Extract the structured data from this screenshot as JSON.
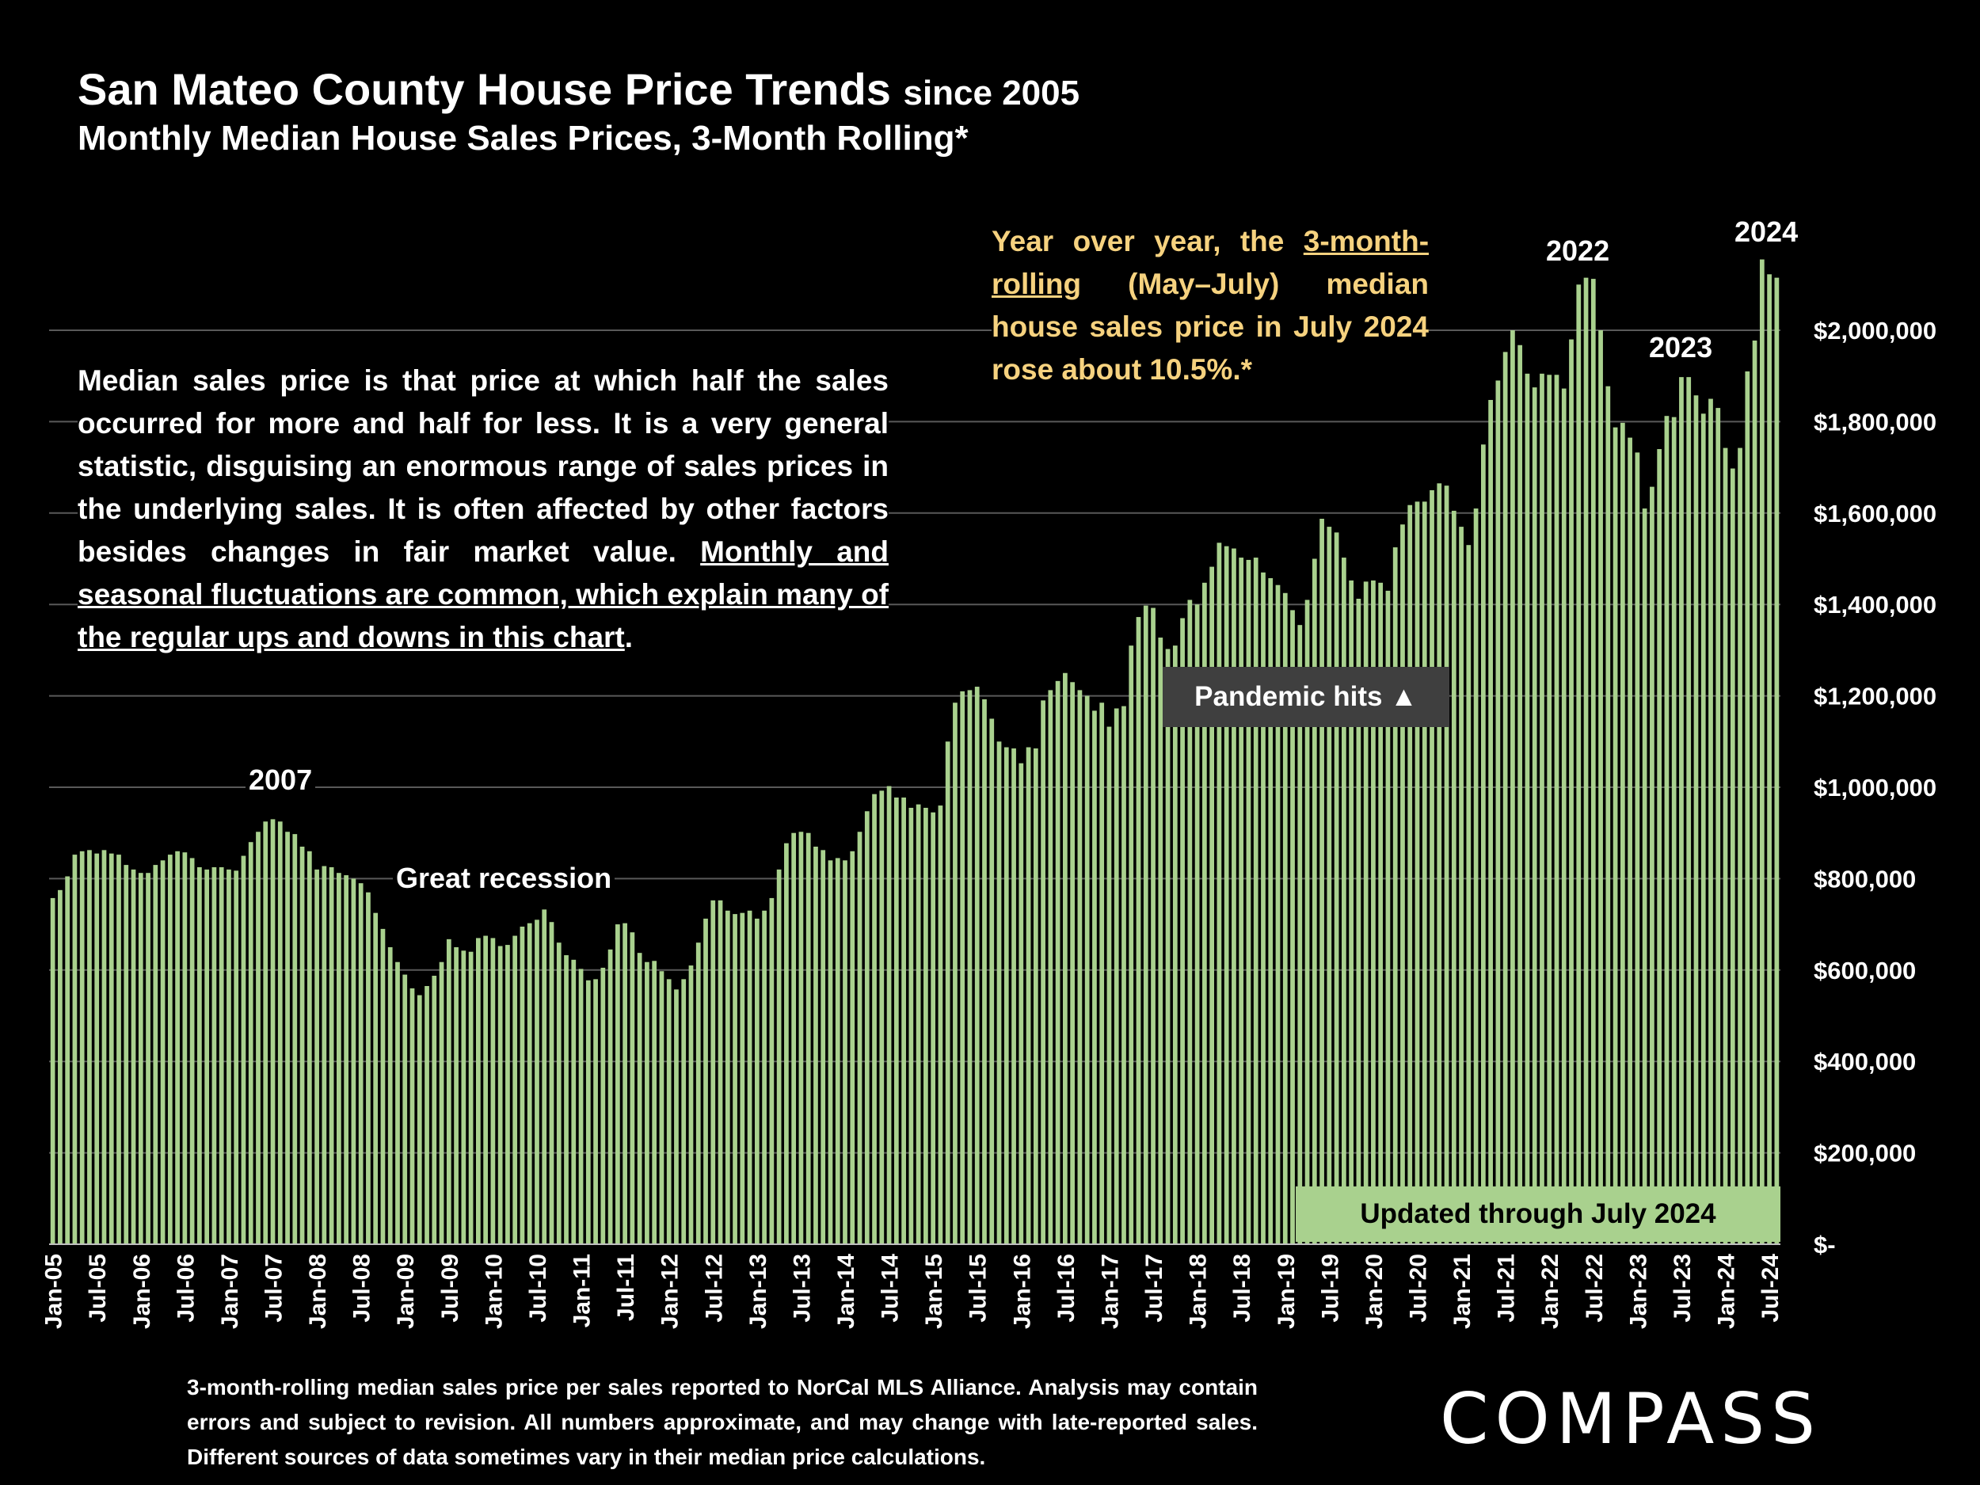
{
  "header": {
    "title": "San Mateo County House Price Trends",
    "title_suffix": "since 2005",
    "subtitle": "Monthly Median House Sales Prices, 3-Month Rolling*"
  },
  "notes": {
    "median_text": "Median sales price is that price at which half the sales occurred for more and half for less. It is a very general statistic, disguising an enormous range of sales prices in the underlying sales. It is often affected by other factors besides changes in fair market value.",
    "median_underlined": "Monthly and seasonal fluctuations are common, which explain many of the regular ups and downs in this chart",
    "median_end": ".",
    "yoy_pre": "Year over year, the",
    "yoy_link": "3-month-rolling",
    "yoy_post": "(May–July) median house sales price in July 2024 rose about 10.5%.*"
  },
  "annotations": {
    "y2007": "2007",
    "recession": "Great recession",
    "pandemic": "Pandemic hits ▲",
    "y2022": "2022",
    "y2023": "2023",
    "y2024": "2024",
    "updated": "Updated through July 2024"
  },
  "footnote": "3-month-rolling median sales price per sales reported to NorCal MLS Alliance. Analysis may contain errors and subject to revision. All numbers approximate, and may change with late-reported sales. Different sources of data sometimes vary in their median price calculations.",
  "logo": "COMPASS",
  "colors": {
    "bar": "#a9d18e",
    "background": "#000000",
    "highlight_text": "#f6d27f",
    "gridline": "#595959"
  },
  "chart_data": {
    "type": "bar",
    "title": "San Mateo County House Price Trends since 2005",
    "subtitle": "Monthly Median House Sales Prices, 3-Month Rolling*",
    "x_start": "Jan-05",
    "x_end": "Jul-24",
    "x_tick_labels": [
      "Jan-05",
      "Jul-05",
      "Jan-06",
      "Jul-06",
      "Jan-07",
      "Jul-07",
      "Jan-08",
      "Jul-08",
      "Jan-09",
      "Jul-09",
      "Jan-10",
      "Jul-10",
      "Jan-11",
      "Jul-11",
      "Jan-12",
      "Jul-12",
      "Jan-13",
      "Jul-13",
      "Jan-14",
      "Jul-14",
      "Jan-15",
      "Jul-15",
      "Jan-16",
      "Jul-16",
      "Jan-17",
      "Jul-17",
      "Jan-18",
      "Jul-18",
      "Jan-19",
      "Jul-19",
      "Jan-20",
      "Jul-20",
      "Jan-21",
      "Jul-21",
      "Jan-22",
      "Jul-22",
      "Jan-23",
      "Jul-23",
      "Jan-24",
      "Jul-24"
    ],
    "y_tick_labels": [
      "$-",
      "$200,000",
      "$400,000",
      "$600,000",
      "$800,000",
      "$1,000,000",
      "$1,200,000",
      "$1,400,000",
      "$1,600,000",
      "$1,800,000",
      "$2,000,000"
    ],
    "ylim": [
      0,
      2150000
    ],
    "y_axis_position": "right",
    "grid": true,
    "values": [
      757500,
      775000,
      805000,
      852500,
      860000,
      862500,
      855000,
      862500,
      855000,
      852500,
      830000,
      820000,
      812500,
      812500,
      830000,
      840000,
      852500,
      860000,
      857500,
      845000,
      825000,
      820000,
      825000,
      825000,
      820000,
      817500,
      850000,
      880000,
      902500,
      925000,
      930000,
      925000,
      902500,
      897500,
      870000,
      860000,
      820000,
      827500,
      825000,
      812500,
      807500,
      800000,
      790000,
      770000,
      725000,
      690000,
      650000,
      617500,
      590000,
      560000,
      545000,
      565000,
      587500,
      617500,
      667500,
      650000,
      642500,
      640000,
      670000,
      675000,
      670000,
      652500,
      655000,
      675000,
      695000,
      702500,
      710000,
      732500,
      705000,
      660000,
      632500,
      622500,
      602500,
      577500,
      580000,
      605000,
      645000,
      700000,
      702500,
      682500,
      637500,
      617500,
      620000,
      597500,
      580000,
      557500,
      580000,
      610000,
      660000,
      712500,
      752500,
      752500,
      730000,
      722500,
      725000,
      730000,
      712500,
      730000,
      757500,
      820000,
      877500,
      900000,
      902500,
      900000,
      870000,
      862500,
      840000,
      845000,
      840000,
      860000,
      902500,
      947500,
      985000,
      992500,
      1002500,
      977500,
      977500,
      955000,
      962500,
      955000,
      945000,
      960000,
      1100000,
      1185000,
      1210000,
      1212500,
      1220000,
      1192500,
      1150000,
      1100000,
      1087500,
      1085000,
      1052500,
      1087500,
      1085000,
      1190000,
      1212500,
      1232500,
      1250000,
      1230000,
      1212500,
      1200000,
      1167500,
      1185000,
      1132500,
      1172500,
      1177500,
      1310000,
      1372500,
      1397500,
      1392500,
      1327500,
      1302500,
      1310000,
      1370000,
      1410000,
      1400000,
      1447500,
      1482500,
      1535000,
      1527500,
      1522500,
      1502500,
      1497500,
      1502500,
      1470000,
      1457500,
      1442500,
      1425000,
      1387500,
      1355000,
      1410000,
      1500000,
      1587500,
      1570000,
      1557500,
      1502500,
      1452500,
      1412500,
      1450000,
      1452500,
      1447500,
      1430000,
      1525000,
      1575000,
      1617500,
      1625000,
      1625000,
      1650000,
      1665000,
      1660000,
      1605000,
      1570000,
      1530000,
      1610000,
      1750000,
      1847500,
      1890000,
      1952500,
      2000000,
      1967500,
      1905000,
      1875000,
      1905000,
      1902500,
      1902500,
      1872500,
      1980000,
      2100000,
      2115000,
      2112500,
      2000000,
      1877500,
      1787500,
      1797500,
      1765000,
      1732500,
      1610000,
      1657500,
      1740000,
      1812500,
      1810000,
      1897500,
      1897500,
      1857500,
      1817500,
      1850000,
      1830000,
      1742500,
      1697500,
      1742500,
      1910000,
      1977500,
      2155000,
      2122500,
      2115000
    ]
  }
}
